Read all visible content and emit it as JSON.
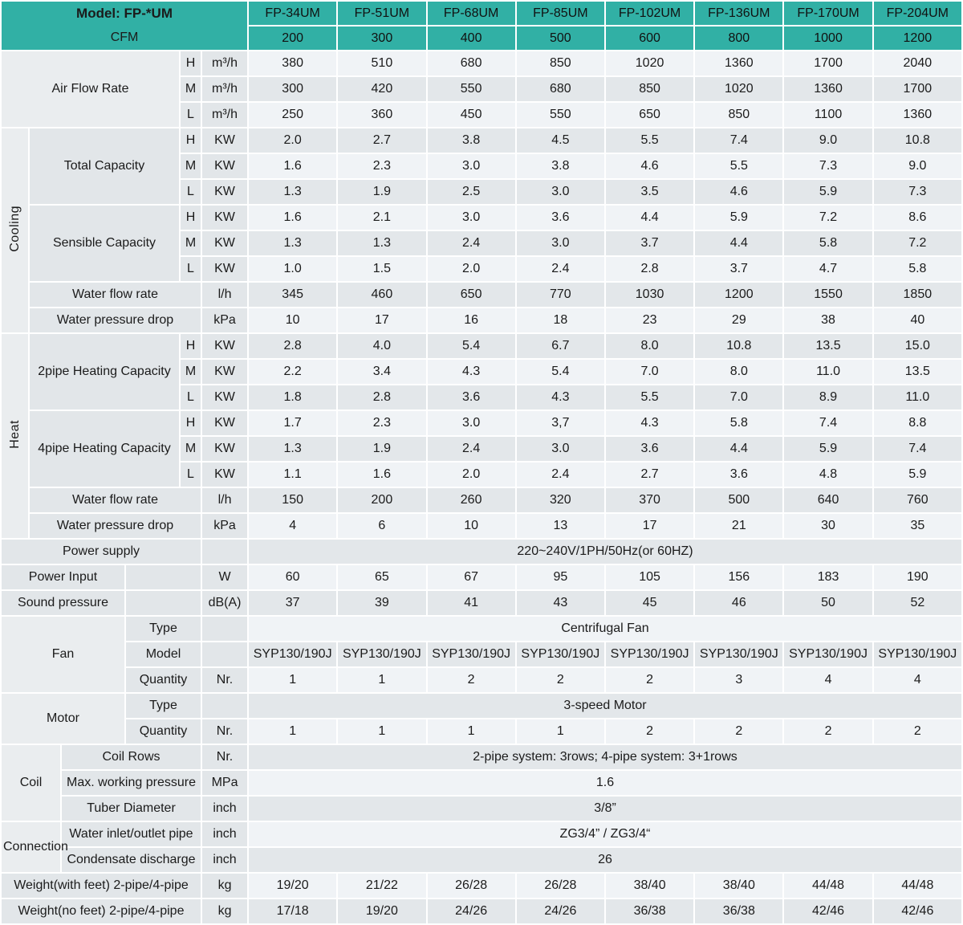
{
  "header": {
    "model_label": "Model: FP-*UM",
    "cfm_label": "CFM",
    "models": [
      "FP-34UM",
      "FP-51UM",
      "FP-68UM",
      "FP-85UM",
      "FP-102UM",
      "FP-136UM",
      "FP-170UM",
      "FP-204UM"
    ],
    "cfm": [
      "200",
      "300",
      "400",
      "500",
      "600",
      "800",
      "1000",
      "1200"
    ]
  },
  "speed": {
    "h": "H",
    "m": "M",
    "l": "L"
  },
  "units": {
    "airflow": "m³/h",
    "capacity": "KW",
    "waterflow": "l/h",
    "pressure_drop": "kPa",
    "power": "W",
    "sound": "dB(A)",
    "count": "Nr.",
    "working_pressure": "MPa",
    "pipe": "inch",
    "weight": "kg"
  },
  "air_flow": {
    "label": "Air Flow Rate",
    "h": [
      "380",
      "510",
      "680",
      "850",
      "1020",
      "1360",
      "1700",
      "2040"
    ],
    "m": [
      "300",
      "420",
      "550",
      "680",
      "850",
      "1020",
      "1360",
      "1700"
    ],
    "l": [
      "250",
      "360",
      "450",
      "550",
      "650",
      "850",
      "1100",
      "1360"
    ]
  },
  "cooling": {
    "label": "Cooling",
    "total": {
      "label": "Total Capacity",
      "h": [
        "2.0",
        "2.7",
        "3.8",
        "4.5",
        "5.5",
        "7.4",
        "9.0",
        "10.8"
      ],
      "m": [
        "1.6",
        "2.3",
        "3.0",
        "3.8",
        "4.6",
        "5.5",
        "7.3",
        "9.0"
      ],
      "l": [
        "1.3",
        "1.9",
        "2.5",
        "3.0",
        "3.5",
        "4.6",
        "5.9",
        "7.3"
      ]
    },
    "sensible": {
      "label": "Sensible Capacity",
      "h": [
        "1.6",
        "2.1",
        "3.0",
        "3.6",
        "4.4",
        "5.9",
        "7.2",
        "8.6"
      ],
      "m": [
        "1.3",
        "1.3",
        "2.4",
        "3.0",
        "3.7",
        "4.4",
        "5.8",
        "7.2"
      ],
      "l": [
        "1.0",
        "1.5",
        "2.0",
        "2.4",
        "2.8",
        "3.7",
        "4.7",
        "5.8"
      ]
    },
    "water_flow": {
      "label": "Water flow rate",
      "values": [
        "345",
        "460",
        "650",
        "770",
        "1030",
        "1200",
        "1550",
        "1850"
      ]
    },
    "water_pressure": {
      "label": "Water pressure drop",
      "values": [
        "10",
        "17",
        "16",
        "18",
        "23",
        "29",
        "38",
        "40"
      ]
    }
  },
  "heat": {
    "label": "Heat",
    "pipe2": {
      "label": "2pipe Heating Capacity",
      "h": [
        "2.8",
        "4.0",
        "5.4",
        "6.7",
        "8.0",
        "10.8",
        "13.5",
        "15.0"
      ],
      "m": [
        "2.2",
        "3.4",
        "4.3",
        "5.4",
        "7.0",
        "8.0",
        "11.0",
        "13.5"
      ],
      "l": [
        "1.8",
        "2.8",
        "3.6",
        "4.3",
        "5.5",
        "7.0",
        "8.9",
        "11.0"
      ]
    },
    "pipe4": {
      "label": "4pipe Heating Capacity",
      "h": [
        "1.7",
        "2.3",
        "3.0",
        "3,7",
        "4.3",
        "5.8",
        "7.4",
        "8.8"
      ],
      "m": [
        "1.3",
        "1.9",
        "2.4",
        "3.0",
        "3.6",
        "4.4",
        "5.9",
        "7.4"
      ],
      "l": [
        "1.1",
        "1.6",
        "2.0",
        "2.4",
        "2.7",
        "3.6",
        "4.8",
        "5.9"
      ]
    },
    "water_flow": {
      "label": "Water flow rate",
      "values": [
        "150",
        "200",
        "260",
        "320",
        "370",
        "500",
        "640",
        "760"
      ]
    },
    "water_pressure": {
      "label": "Water pressure drop",
      "values": [
        "4",
        "6",
        "10",
        "13",
        "17",
        "21",
        "30",
        "35"
      ]
    }
  },
  "power_supply": {
    "label": "Power supply",
    "value": "220~240V/1PH/50Hz(or 60HZ)"
  },
  "power_input": {
    "label": "Power Input",
    "values": [
      "60",
      "65",
      "67",
      "95",
      "105",
      "156",
      "183",
      "190"
    ]
  },
  "sound_pressure": {
    "label": "Sound pressure",
    "values": [
      "37",
      "39",
      "41",
      "43",
      "45",
      "46",
      "50",
      "52"
    ]
  },
  "fan": {
    "label": "Fan",
    "type": {
      "label": "Type",
      "value": "Centrifugal Fan"
    },
    "model": {
      "label": "Model",
      "values": [
        "SYP130/190J",
        "SYP130/190J",
        "SYP130/190J",
        "SYP130/190J",
        "SYP130/190J",
        "SYP130/190J",
        "SYP130/190J",
        "SYP130/190J"
      ]
    },
    "quantity": {
      "label": "Quantity",
      "values": [
        "1",
        "1",
        "2",
        "2",
        "2",
        "3",
        "4",
        "4"
      ]
    }
  },
  "motor": {
    "label": "Motor",
    "type": {
      "label": "Type",
      "value": "3-speed Motor"
    },
    "quantity": {
      "label": "Quantity",
      "values": [
        "1",
        "1",
        "1",
        "1",
        "2",
        "2",
        "2",
        "2"
      ]
    }
  },
  "coil": {
    "label": "Coil",
    "rows": {
      "label": "Coil Rows",
      "value": "2-pipe system: 3rows; 4-pipe system: 3+1rows"
    },
    "max_pressure": {
      "label": "Max. working pressure",
      "value": "1.6"
    },
    "tuber_diameter": {
      "label": "Tuber Diameter",
      "value": "3/8”"
    }
  },
  "connection": {
    "label": "Connection",
    "inlet_outlet": {
      "label": "Water inlet/outlet pipe",
      "value": "ZG3/4” / ZG3/4“"
    },
    "condensate": {
      "label": "Condensate discharge",
      "value": "26"
    }
  },
  "weight_with_feet": {
    "label": "Weight(with feet) 2-pipe/4-pipe",
    "values": [
      "19/20",
      "21/22",
      "26/28",
      "26/28",
      "38/40",
      "38/40",
      "44/48",
      "44/48"
    ]
  },
  "weight_no_feet": {
    "label": "Weight(no feet) 2-pipe/4-pipe",
    "values": [
      "17/18",
      "19/20",
      "24/26",
      "24/26",
      "36/38",
      "36/38",
      "42/46",
      "42/46"
    ]
  },
  "colors": {
    "header_teal": "#31b0a5",
    "row_light": "#f0f3f6",
    "row_dark": "#e3e7ea",
    "label_gray": "#e2e6e9"
  }
}
